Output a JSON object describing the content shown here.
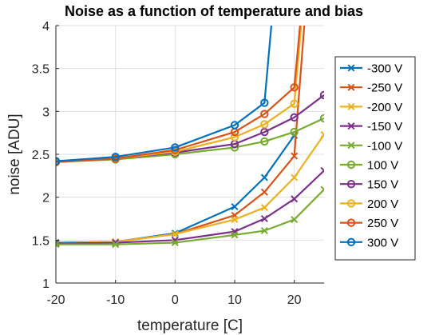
{
  "chart_data": {
    "type": "line",
    "title": "Noise as a function of temperature and bias",
    "xlabel": "temperature [C]",
    "ylabel": "noise [ADU]",
    "xlim": [
      -20,
      25
    ],
    "ylim": [
      1,
      4
    ],
    "xticks": [
      -20,
      -10,
      0,
      10,
      20
    ],
    "xtick_labels": [
      "-20",
      "-10",
      "0",
      "10",
      "20"
    ],
    "yticks": [
      1,
      1.5,
      2,
      2.5,
      3,
      3.5,
      4
    ],
    "ytick_labels": [
      "1",
      "1.5",
      "2",
      "2.5",
      "3",
      "3.5",
      "4"
    ],
    "grid": true,
    "legend_position": "right",
    "series": [
      {
        "name": "-300 V",
        "color": "#0072BD",
        "marker": "x",
        "x": [
          -20,
          -10,
          0,
          10,
          15,
          20
        ],
        "y": [
          1.47,
          1.48,
          1.58,
          1.89,
          2.23,
          2.72
        ]
      },
      {
        "name": "-250 V",
        "color": "#D95319",
        "marker": "x",
        "x": [
          -20,
          -10,
          0,
          10,
          15,
          20,
          25
        ],
        "y": [
          1.46,
          1.48,
          1.57,
          1.79,
          2.06,
          2.48,
          7.0
        ]
      },
      {
        "name": "-200 V",
        "color": "#EDB120",
        "marker": "x",
        "x": [
          -20,
          -10,
          0,
          10,
          15,
          20,
          25
        ],
        "y": [
          1.46,
          1.48,
          1.57,
          1.74,
          1.88,
          2.23,
          2.73
        ]
      },
      {
        "name": "-150 V",
        "color": "#7E2F8E",
        "marker": "x",
        "x": [
          -20,
          -10,
          0,
          10,
          15,
          20,
          25
        ],
        "y": [
          1.46,
          1.47,
          1.5,
          1.6,
          1.75,
          1.98,
          2.31
        ]
      },
      {
        "name": "-100 V",
        "color": "#77AC30",
        "marker": "x",
        "x": [
          -20,
          -10,
          0,
          10,
          15,
          20,
          25
        ],
        "y": [
          1.45,
          1.45,
          1.47,
          1.56,
          1.61,
          1.74,
          2.09
        ]
      },
      {
        "name": "100 V",
        "color": "#77AC30",
        "marker": "o",
        "x": [
          -20,
          -10,
          0,
          10,
          15,
          20,
          25
        ],
        "y": [
          2.41,
          2.44,
          2.5,
          2.58,
          2.65,
          2.76,
          2.92
        ]
      },
      {
        "name": "150 V",
        "color": "#7E2F8E",
        "marker": "o",
        "x": [
          -20,
          -10,
          0,
          10,
          15,
          20,
          25
        ],
        "y": [
          2.41,
          2.45,
          2.52,
          2.62,
          2.76,
          2.93,
          3.19
        ]
      },
      {
        "name": "200 V",
        "color": "#EDB120",
        "marker": "o",
        "x": [
          -20,
          -10,
          0,
          10,
          15,
          20,
          25
        ],
        "y": [
          2.41,
          2.45,
          2.53,
          2.7,
          2.85,
          3.09,
          7.0
        ]
      },
      {
        "name": "250 V",
        "color": "#D95319",
        "marker": "o",
        "x": [
          -20,
          -10,
          0,
          10,
          15,
          20,
          25
        ],
        "y": [
          2.41,
          2.45,
          2.55,
          2.76,
          2.97,
          3.28,
          7.0
        ]
      },
      {
        "name": "300 V",
        "color": "#0072BD",
        "marker": "o",
        "x": [
          -20,
          -10,
          0,
          10,
          15,
          20
        ],
        "y": [
          2.42,
          2.47,
          2.58,
          2.84,
          3.1,
          7.0
        ]
      }
    ]
  }
}
